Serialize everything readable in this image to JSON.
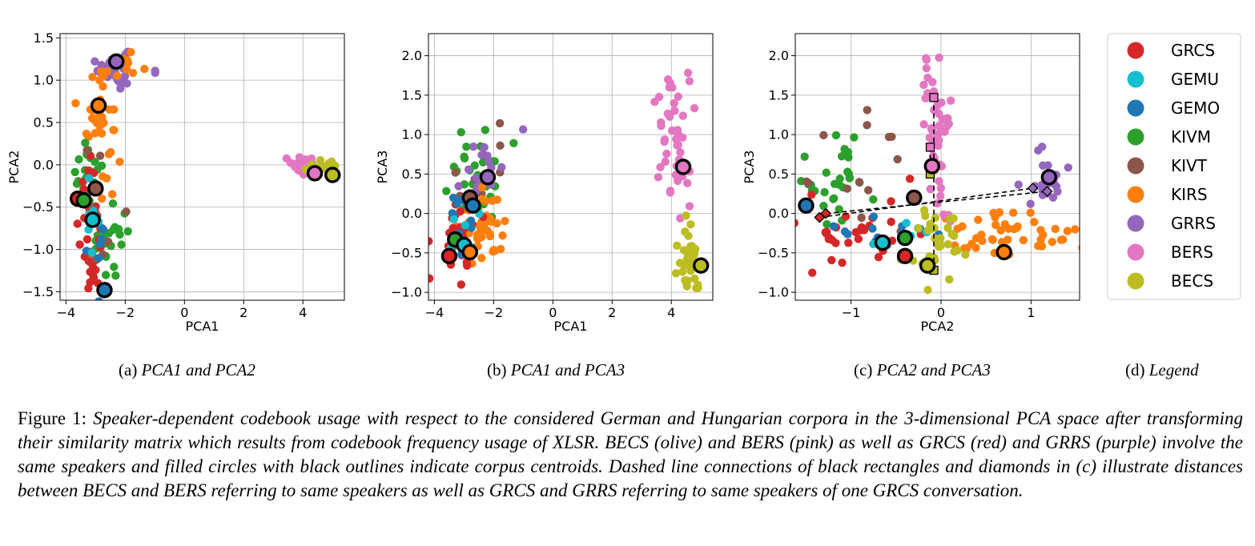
{
  "colors": {
    "GRCS": "#d62728",
    "GEMU": "#17becf",
    "GEMO": "#1f77b4",
    "KIVM": "#2ca02c",
    "KIVT": "#8c564b",
    "KIRS": "#ff7f0e",
    "GRRS": "#9467bd",
    "BERS": "#e377c2",
    "BECS": "#bcbd22"
  },
  "legend": [
    "GRCS",
    "GEMU",
    "GEMO",
    "KIVM",
    "KIVT",
    "KIRS",
    "GRRS",
    "BERS",
    "BECS"
  ],
  "chart_data": [
    {
      "type": "scatter",
      "panel": "a",
      "xlabel": "PCA1",
      "ylabel": "PCA2",
      "xlim": [
        -4.2,
        5.4
      ],
      "ylim": [
        -1.6,
        1.55
      ],
      "xticks": [
        -4,
        -2,
        0,
        2,
        4
      ],
      "xtick_labels": [
        "−4",
        "−2",
        "0",
        "2",
        "4"
      ],
      "yticks": [
        -1.5,
        -1.0,
        -0.5,
        0.0,
        0.5,
        1.0,
        1.5
      ],
      "ytick_labels": [
        "−1.5",
        "−1.0",
        "−0.5",
        "0.0",
        "0.5",
        "1.0",
        "1.5"
      ],
      "grid": true,
      "clusters": [
        {
          "name": "GRRS",
          "cx": -2.4,
          "cy": 1.15,
          "sx": 0.25,
          "sy": 0.12,
          "n": 40
        },
        {
          "name": "GRRS",
          "cx": -1.0,
          "cy": 1.1,
          "sx": 0.05,
          "sy": 0.02,
          "n": 2
        },
        {
          "name": "KIRS",
          "cx": -2.8,
          "cy": 0.6,
          "sx": 0.25,
          "sy": 0.35,
          "n": 40
        },
        {
          "name": "KIRS",
          "cx": -2.0,
          "cy": 1.2,
          "sx": 0.25,
          "sy": 0.08,
          "n": 8
        },
        {
          "name": "KIVM",
          "cx": -3.3,
          "cy": -0.05,
          "sx": 0.25,
          "sy": 0.2,
          "n": 20
        },
        {
          "name": "KIVM",
          "cx": -2.6,
          "cy": -1.0,
          "sx": 0.4,
          "sy": 0.25,
          "n": 25
        },
        {
          "name": "GRCS",
          "cx": -3.2,
          "cy": -0.9,
          "sx": 0.2,
          "sy": 0.45,
          "n": 35
        },
        {
          "name": "KIVT",
          "cx": -2.7,
          "cy": -0.4,
          "sx": 0.35,
          "sy": 0.4,
          "n": 10
        },
        {
          "name": "GEMO",
          "cx": -2.9,
          "cy": -1.0,
          "sx": 0.2,
          "sy": 0.3,
          "n": 10
        },
        {
          "name": "GEMU",
          "cx": -3.0,
          "cy": -0.7,
          "sx": 0.2,
          "sy": 0.3,
          "n": 6
        },
        {
          "name": "BERS",
          "cx": 4.0,
          "cy": 0.0,
          "sx": 0.3,
          "sy": 0.05,
          "n": 22
        },
        {
          "name": "BECS",
          "cx": 4.6,
          "cy": -0.05,
          "sx": 0.3,
          "sy": 0.05,
          "n": 22
        }
      ],
      "centroids": [
        {
          "name": "GRRS",
          "x": -2.3,
          "y": 1.22
        },
        {
          "name": "KIRS",
          "x": -2.9,
          "y": 0.7
        },
        {
          "name": "KIVT",
          "x": -3.0,
          "y": -0.28
        },
        {
          "name": "GRCS",
          "x": -3.6,
          "y": -0.4
        },
        {
          "name": "KIVM",
          "x": -3.4,
          "y": -0.42
        },
        {
          "name": "GEMU",
          "x": -3.1,
          "y": -0.65
        },
        {
          "name": "GEMO",
          "x": -2.7,
          "y": -1.48
        },
        {
          "name": "BERS",
          "x": 4.4,
          "y": -0.1
        },
        {
          "name": "BECS",
          "x": 5.0,
          "y": -0.12
        }
      ]
    },
    {
      "type": "scatter",
      "panel": "b",
      "xlabel": "PCA1",
      "ylabel": "PCA3",
      "xlim": [
        -4.2,
        5.4
      ],
      "ylim": [
        -1.1,
        2.28
      ],
      "xticks": [
        -4,
        -2,
        0,
        2,
        4
      ],
      "xtick_labels": [
        "−4",
        "−2",
        "0",
        "2",
        "4"
      ],
      "yticks": [
        -1.0,
        -0.5,
        0.0,
        0.5,
        1.0,
        1.5,
        2.0
      ],
      "ytick_labels": [
        "−1.0",
        "−0.5",
        "0.0",
        "0.5",
        "1.0",
        "1.5",
        "2.0"
      ],
      "grid": true,
      "clusters": [
        {
          "name": "KIVM",
          "cx": -2.6,
          "cy": 0.5,
          "sx": 0.5,
          "sy": 0.35,
          "n": 30
        },
        {
          "name": "KIVT",
          "cx": -2.4,
          "cy": 0.5,
          "sx": 0.4,
          "sy": 0.3,
          "n": 10
        },
        {
          "name": "GRRS",
          "cx": -2.3,
          "cy": 0.55,
          "sx": 0.35,
          "sy": 0.2,
          "n": 15
        },
        {
          "name": "GRRS",
          "cx": -1.0,
          "cy": 1.07,
          "sx": 0.02,
          "sy": 0.02,
          "n": 1
        },
        {
          "name": "KIRS",
          "cx": -2.4,
          "cy": -0.2,
          "sx": 0.4,
          "sy": 0.25,
          "n": 40
        },
        {
          "name": "GRCS",
          "cx": -3.2,
          "cy": -0.25,
          "sx": 0.3,
          "sy": 0.25,
          "n": 30
        },
        {
          "name": "GEMO",
          "cx": -3.0,
          "cy": -0.1,
          "sx": 0.3,
          "sy": 0.2,
          "n": 10
        },
        {
          "name": "GEMU",
          "cx": -3.0,
          "cy": -0.2,
          "sx": 0.3,
          "sy": 0.2,
          "n": 6
        },
        {
          "name": "BERS",
          "cx": 4.1,
          "cy": 1.0,
          "sx": 0.3,
          "sy": 0.55,
          "n": 45
        },
        {
          "name": "BECS",
          "cx": 4.6,
          "cy": -0.55,
          "sx": 0.2,
          "sy": 0.25,
          "n": 35
        }
      ],
      "centroids": [
        {
          "name": "GRRS",
          "x": -2.2,
          "y": 0.46
        },
        {
          "name": "KIVT",
          "x": -2.8,
          "y": 0.2
        },
        {
          "name": "GEMO",
          "x": -2.7,
          "y": 0.1
        },
        {
          "name": "KIVM",
          "x": -3.3,
          "y": -0.33
        },
        {
          "name": "GEMU",
          "x": -3.0,
          "y": -0.4
        },
        {
          "name": "KIRS",
          "x": -2.8,
          "y": -0.49
        },
        {
          "name": "GRCS",
          "x": -3.5,
          "y": -0.54
        },
        {
          "name": "BERS",
          "x": 4.4,
          "y": 0.59
        },
        {
          "name": "BECS",
          "x": 5.0,
          "y": -0.66
        }
      ]
    },
    {
      "type": "scatter",
      "panel": "c",
      "xlabel": "PCA2",
      "ylabel": "PCA3",
      "xlim": [
        -1.62,
        1.54
      ],
      "ylim": [
        -1.1,
        2.28
      ],
      "xticks": [
        -1,
        0,
        1
      ],
      "xtick_labels": [
        "−1",
        "0",
        "1"
      ],
      "yticks": [
        -1.0,
        -0.5,
        0.0,
        0.5,
        1.0,
        1.5,
        2.0
      ],
      "ytick_labels": [
        "−1.0",
        "−0.5",
        "0.0",
        "0.5",
        "1.0",
        "1.5",
        "2.0"
      ],
      "grid": true,
      "clusters": [
        {
          "name": "KIVM",
          "cx": -1.1,
          "cy": 0.5,
          "sx": 0.3,
          "sy": 0.35,
          "n": 30
        },
        {
          "name": "KIVT",
          "cx": -0.8,
          "cy": 0.6,
          "sx": 0.35,
          "sy": 0.35,
          "n": 12
        },
        {
          "name": "GRCS",
          "cx": -1.0,
          "cy": -0.2,
          "sx": 0.35,
          "sy": 0.25,
          "n": 30
        },
        {
          "name": "GEMO",
          "cx": -0.8,
          "cy": -0.3,
          "sx": 0.35,
          "sy": 0.15,
          "n": 12
        },
        {
          "name": "GEMU",
          "cx": -0.5,
          "cy": -0.3,
          "sx": 0.35,
          "sy": 0.1,
          "n": 8
        },
        {
          "name": "KIRS",
          "cx": 0.8,
          "cy": -0.3,
          "sx": 0.35,
          "sy": 0.18,
          "n": 45
        },
        {
          "name": "GRRS",
          "cx": 1.15,
          "cy": 0.45,
          "sx": 0.15,
          "sy": 0.15,
          "n": 22
        },
        {
          "name": "BERS",
          "cx": -0.05,
          "cy": 0.9,
          "sx": 0.08,
          "sy": 0.55,
          "n": 50
        },
        {
          "name": "BECS",
          "cx": -0.05,
          "cy": -0.4,
          "sx": 0.15,
          "sy": 0.25,
          "n": 35
        }
      ],
      "centroids": [
        {
          "name": "GEMO",
          "x": -1.5,
          "y": 0.1
        },
        {
          "name": "KIVT",
          "x": -0.3,
          "y": 0.2
        },
        {
          "name": "BERS",
          "x": -0.1,
          "y": 0.6
        },
        {
          "name": "GRRS",
          "x": 1.2,
          "y": 0.46
        },
        {
          "name": "GEMU",
          "x": -0.65,
          "y": -0.37
        },
        {
          "name": "KIVM",
          "x": -0.4,
          "y": -0.31
        },
        {
          "name": "GRCS",
          "x": -0.4,
          "y": -0.54
        },
        {
          "name": "KIRS",
          "x": 0.7,
          "y": -0.49
        },
        {
          "name": "BECS",
          "x": -0.15,
          "y": -0.66
        }
      ],
      "connections": [
        {
          "marker": "square",
          "from": [
            -0.08,
            1.47
          ],
          "to": [
            -0.08,
            -0.72
          ]
        },
        {
          "marker": "square",
          "from": [
            -0.12,
            0.84
          ],
          "to": [
            -0.12,
            0.5
          ]
        },
        {
          "marker": "diamond",
          "from": [
            -1.35,
            -0.05
          ],
          "to": [
            1.02,
            0.32
          ]
        },
        {
          "marker": "diamond",
          "from": [
            -1.28,
            0.0
          ],
          "to": [
            1.18,
            0.28
          ]
        }
      ]
    }
  ],
  "subcaptions": {
    "a": {
      "label": "(a) ",
      "text": "PCA1 and PCA2"
    },
    "b": {
      "label": "(b) ",
      "text": "PCA1 and PCA3"
    },
    "c": {
      "label": "(c) ",
      "text": "PCA2 and PCA3"
    },
    "d": {
      "label": "(d) ",
      "text": "Legend"
    }
  },
  "caption": {
    "label": "Figure 1: ",
    "text": "Speaker-dependent codebook usage with respect to the considered German and Hungarian corpora in the 3-dimensional PCA space after transforming their similarity matrix which results from codebook frequency usage of XLSR. BECS (olive) and BERS (pink) as well as GRCS (red) and GRRS (purple) involve the same speakers and filled circles with black outlines indicate corpus centroids. Dashed line connections of black rectangles and diamonds in (c) illustrate distances between BECS and BERS referring to same speakers as well as GRCS and GRRS referring to same speakers of one GRCS conversation."
  }
}
